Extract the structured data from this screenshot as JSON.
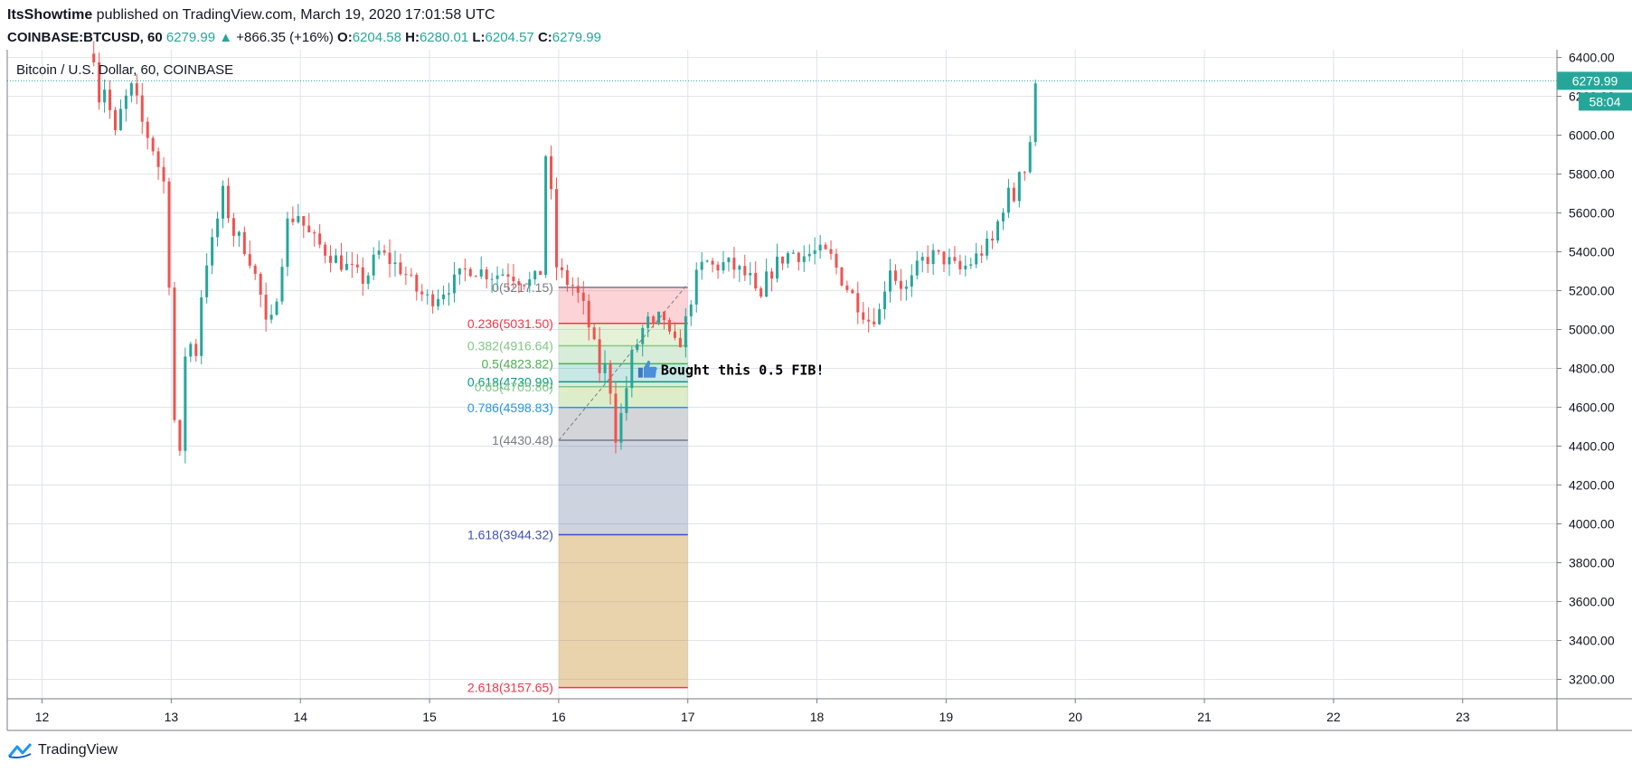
{
  "header": {
    "author": "ItsShowtime",
    "published_text": " published on TradingView.com, March 19, 2020 17:01:58 UTC",
    "symbol": "COINBASE:BTCUSD, 60",
    "last": "6279.99",
    "change": "+866.35 (+16%)",
    "o_label": "O:",
    "o": "6204.58",
    "h_label": "H:",
    "h": "6280.01",
    "l_label": "L:",
    "l": "6204.57",
    "c_label": "C:",
    "c": "6279.99"
  },
  "footer": {
    "brand": "TradingView"
  },
  "colors": {
    "up": "#26a69a",
    "down": "#ef5350",
    "grid": "#e0e3eb",
    "text": "#131722",
    "fib_0": "#787b86",
    "fib_236": "#f23645",
    "fib_382": "#81c784",
    "fib_5": "#4caf50",
    "fib_618": "#089981",
    "fib_786": "#2196f3",
    "fib_1618": "#3f51b5",
    "fib_2618": "#f23645"
  },
  "chart_data": {
    "type": "candlestick",
    "title": "Bitcoin / U.S. Dollar, 60, COINBASE",
    "x_ticks": [
      "12",
      "13",
      "14",
      "15",
      "16",
      "17",
      "18",
      "19",
      "20",
      "21",
      "22",
      "23"
    ],
    "y_ticks": [
      "3200.00",
      "3400.00",
      "3600.00",
      "3800.00",
      "4000.00",
      "4200.00",
      "4400.00",
      "4600.00",
      "4800.00",
      "5000.00",
      "5200.00",
      "5400.00",
      "5600.00",
      "5800.00",
      "6000.00",
      "6200.00",
      "6400.00"
    ],
    "ylim": [
      3100,
      6440
    ],
    "xlim": [
      11.73,
      23.73
    ],
    "grid": true,
    "last_price_label": "6279.99",
    "countdown_label": "58:04",
    "annotation": {
      "text": "Bought this 0.5 FIB!",
      "icon": "thumbs-up-icon",
      "day": 16.7,
      "price": 4790
    },
    "fib_x_range": [
      16.0,
      17.0
    ],
    "fib_levels": [
      {
        "label": "0(5217.15)",
        "ratio": 0,
        "price": 5217.15
      },
      {
        "label": "0.236(5031.50)",
        "ratio": 0.236,
        "price": 5031.5
      },
      {
        "label": "0.382(4916.64)",
        "ratio": 0.382,
        "price": 4916.64
      },
      {
        "label": "0.5(4823.82)",
        "ratio": 0.5,
        "price": 4823.82
      },
      {
        "label": "0.618(4730.99)",
        "ratio": 0.618,
        "price": 4730.99
      },
      {
        "label": "0.65(4705.86)",
        "ratio": 0.65,
        "price": 4705.86
      },
      {
        "label": "0.786(4598.83)",
        "ratio": 0.786,
        "price": 4598.83
      },
      {
        "label": "1(4430.48)",
        "ratio": 1,
        "price": 4430.48
      },
      {
        "label": "1.618(3944.32)",
        "ratio": 1.618,
        "price": 3944.32
      },
      {
        "label": "2.618(3157.65)",
        "ratio": 2.618,
        "price": 3157.65
      }
    ],
    "price_path": [
      [
        12.4,
        6420
      ],
      [
        12.45,
        6150
      ],
      [
        12.5,
        6300
      ],
      [
        12.55,
        5950
      ],
      [
        12.62,
        6150
      ],
      [
        12.7,
        6250
      ],
      [
        12.78,
        6050
      ],
      [
        12.85,
        5950
      ],
      [
        12.92,
        5800
      ],
      [
        12.97,
        5700
      ],
      [
        13.0,
        4700
      ],
      [
        13.02,
        4600
      ],
      [
        13.05,
        4200
      ],
      [
        13.08,
        4450
      ],
      [
        13.12,
        5050
      ],
      [
        13.18,
        4800
      ],
      [
        13.25,
        5300
      ],
      [
        13.32,
        5450
      ],
      [
        13.4,
        5700
      ],
      [
        13.48,
        5500
      ],
      [
        13.55,
        5450
      ],
      [
        13.62,
        5350
      ],
      [
        13.7,
        5150
      ],
      [
        13.75,
        4950
      ],
      [
        13.82,
        5200
      ],
      [
        13.9,
        5550
      ],
      [
        13.98,
        5600
      ],
      [
        14.05,
        5500
      ],
      [
        14.12,
        5450
      ],
      [
        14.2,
        5400
      ],
      [
        14.3,
        5350
      ],
      [
        14.4,
        5300
      ],
      [
        14.5,
        5250
      ],
      [
        14.6,
        5400
      ],
      [
        14.7,
        5350
      ],
      [
        14.8,
        5300
      ],
      [
        14.9,
        5200
      ],
      [
        15.0,
        5150
      ],
      [
        15.1,
        5200
      ],
      [
        15.2,
        5250
      ],
      [
        15.3,
        5320
      ],
      [
        15.4,
        5300
      ],
      [
        15.5,
        5280
      ],
      [
        15.6,
        5300
      ],
      [
        15.7,
        5260
      ],
      [
        15.8,
        5240
      ],
      [
        15.86,
        5300
      ],
      [
        15.9,
        5900
      ],
      [
        15.94,
        5700
      ],
      [
        15.98,
        5330
      ],
      [
        16.05,
        5250
      ],
      [
        16.12,
        5220
      ],
      [
        16.2,
        5100
      ],
      [
        16.26,
        4950
      ],
      [
        16.32,
        4780
      ],
      [
        16.38,
        4820
      ],
      [
        16.44,
        4450
      ],
      [
        16.5,
        4600
      ],
      [
        16.56,
        4850
      ],
      [
        16.62,
        4950
      ],
      [
        16.68,
        5050
      ],
      [
        16.74,
        4990
      ],
      [
        16.8,
        5100
      ],
      [
        16.86,
        4950
      ],
      [
        16.92,
        4900
      ],
      [
        16.97,
        5000
      ],
      [
        17.02,
        5150
      ],
      [
        17.08,
        5300
      ],
      [
        17.14,
        5350
      ],
      [
        17.2,
        5320
      ],
      [
        17.3,
        5340
      ],
      [
        17.4,
        5300
      ],
      [
        17.5,
        5250
      ],
      [
        17.55,
        5100
      ],
      [
        17.6,
        5250
      ],
      [
        17.7,
        5350
      ],
      [
        17.8,
        5400
      ],
      [
        17.9,
        5380
      ],
      [
        18.0,
        5400
      ],
      [
        18.1,
        5380
      ],
      [
        18.2,
        5250
      ],
      [
        18.3,
        5150
      ],
      [
        18.4,
        5050
      ],
      [
        18.5,
        5100
      ],
      [
        18.55,
        5350
      ],
      [
        18.62,
        5250
      ],
      [
        18.7,
        5200
      ],
      [
        18.8,
        5350
      ],
      [
        18.9,
        5380
      ],
      [
        19.0,
        5360
      ],
      [
        19.1,
        5300
      ],
      [
        19.2,
        5350
      ],
      [
        19.3,
        5420
      ],
      [
        19.36,
        5450
      ],
      [
        19.42,
        5600
      ],
      [
        19.48,
        5700
      ],
      [
        19.52,
        5650
      ],
      [
        19.56,
        5850
      ],
      [
        19.6,
        5800
      ],
      [
        19.64,
        5900
      ],
      [
        19.67,
        6120
      ],
      [
        19.7,
        6279.99
      ]
    ]
  }
}
